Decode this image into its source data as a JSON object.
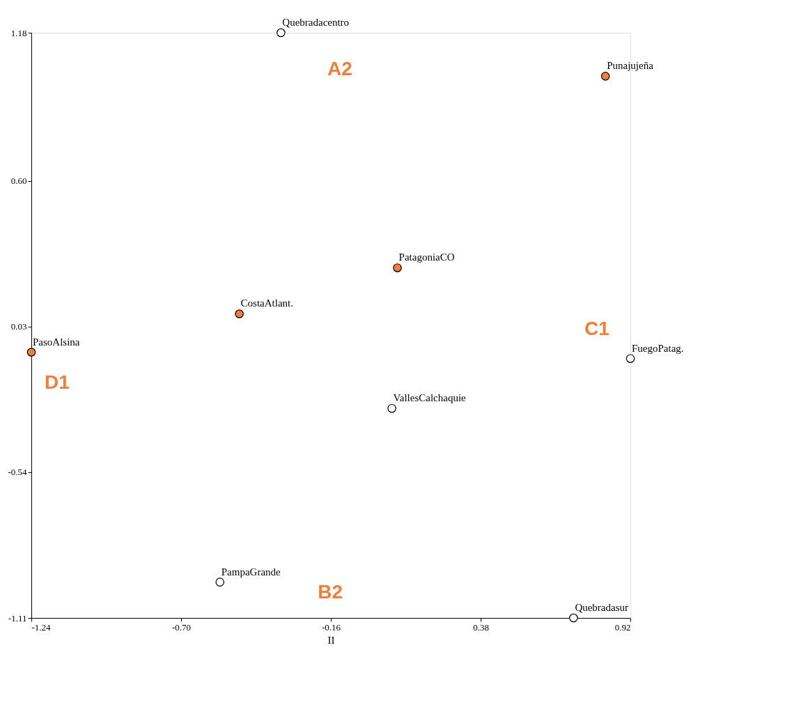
{
  "chart_data": {
    "type": "scatter",
    "xlabel": "II",
    "marker": "circle",
    "grid": false,
    "xlim": [
      -1.24,
      0.92
    ],
    "ylim": [
      -1.11,
      1.18
    ],
    "xticks": [
      -1.24,
      {
        "value": -0.7,
        "label": "-0.70"
      },
      -0.16,
      0.38,
      0.92
    ],
    "yticks": [
      -1.11,
      -0.54,
      0.03,
      {
        "value": 0.6,
        "label": "0.60"
      },
      1.18
    ],
    "series": [
      {
        "color": "#f07f3c",
        "x": [
          0.83,
          0.08,
          -0.49,
          -1.24
        ],
        "values": [
          1.01,
          0.26,
          0.08,
          -0.07
        ],
        "value_labels": [
          "Punajujeña",
          "PatagoniaCO",
          "CostaAtlant.",
          "PasoAlsina"
        ]
      },
      {
        "color": "#ffffff",
        "x": [
          -0.34,
          0.92,
          0.06,
          -0.56,
          0.715
        ],
        "values": [
          1.18,
          -0.095,
          -0.29,
          -0.97,
          -1.11
        ],
        "value_labels": [
          "Quebradacentro",
          "FuegoPatag.",
          "VallesCalchaquie",
          "PampaGrande",
          "Quebradasur"
        ]
      }
    ],
    "annotations": [
      "A2",
      "C1",
      "D1",
      "B2"
    ]
  }
}
